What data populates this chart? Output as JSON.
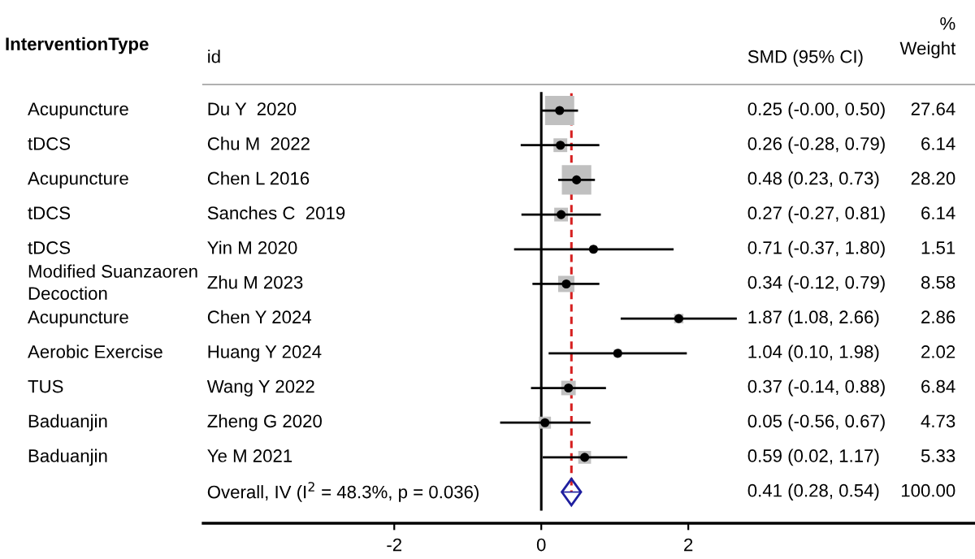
{
  "chart_data": {
    "type": "bubble",
    "orientation": "horizontal",
    "categories": [
      "Du Y  2020",
      "Chu M  2022",
      "Chen L 2016",
      "Sanches C  2019",
      "Yin M 2020",
      "Zhu M 2023",
      "Chen Y 2024",
      "Huang Y 2024",
      "Wang Y 2022",
      "Zheng G 2020",
      "Ye M 2021",
      "Overall, IV (I$^{2}$ = 48.3%, p = 0.036)"
    ],
    "series": [
      {
        "marker": "square",
        "color": "#c0c0c0",
        "values": [
          0.25,
          0.26,
          0.48,
          0.27,
          0.71,
          0.34,
          1.87,
          1.04,
          0.37,
          0.05,
          0.59,
          null
        ],
        "sizes": [
          0.98,
          0.218,
          1,
          0.218,
          0.054,
          0.304,
          0.101,
          0.072,
          0.243,
          0.168,
          0.189,
          null
        ],
        "errors": [
          [
            -0.0,
            0.5
          ],
          [
            -0.28,
            0.79
          ],
          [
            0.23,
            0.73
          ],
          [
            -0.27,
            0.81
          ],
          [
            -0.37,
            1.8
          ],
          [
            -0.12,
            0.79
          ],
          [
            1.08,
            2.66
          ],
          [
            0.1,
            1.98
          ],
          [
            -0.14,
            0.88
          ],
          [
            -0.56,
            0.67
          ],
          [
            0.02,
            1.17
          ],
          null
        ]
      },
      {
        "type": "scatter",
        "marker": "diamond",
        "color": "#1f1f9f",
        "values": [
          null,
          null,
          null,
          null,
          null,
          null,
          null,
          null,
          null,
          null,
          null,
          0.41
        ],
        "errors": [
          null,
          null,
          null,
          null,
          null,
          null,
          null,
          null,
          null,
          null,
          null,
          [
            0.28,
            0.54
          ]
        ]
      }
    ],
    "value_labels": [
      "0.25 (-0.00, 0.50)",
      "0.26 (-0.28, 0.79)",
      "0.48 (0.23, 0.73)",
      "0.27 (-0.27, 0.81)",
      "0.71 (-0.37, 1.80)",
      "0.34 (-0.12, 0.79)",
      "1.87 (1.08, 2.66)",
      "1.04 (0.10, 1.98)",
      "0.37 (-0.14, 0.88)",
      "0.05 (-0.56, 0.67)",
      "0.59 (0.02, 1.17)",
      "0.41 (0.28, 0.54)"
    ],
    "annotations": [
      "InterventionType",
      "id",
      "SMD (95% CI)",
      "%\nWeight",
      "Acupuncture",
      "tDCS",
      "Acupuncture",
      "tDCS",
      "tDCS",
      "Modified Suanzaoren\nDecoction",
      "Acupuncture",
      "Aerobic Exercise",
      "TUS",
      "Baduanjin",
      "Baduanjin",
      "27.64",
      "6.14",
      "28.20",
      "6.14",
      "1.51",
      "8.58",
      "2.86",
      "2.02",
      "6.84",
      "4.73",
      "5.33",
      "100.00"
    ],
    "ref_lines": [
      {
        "axis": "x",
        "value": 0,
        "color": "#000000",
        "line_style": "solid"
      },
      {
        "axis": "x",
        "value": 0.41,
        "color": "#d62020",
        "line_style": "dashed"
      }
    ],
    "xlim": [
      -4.6,
      5.9
    ],
    "xticks": [
      -2,
      0,
      2
    ],
    "grid": false,
    "legend": false
  }
}
